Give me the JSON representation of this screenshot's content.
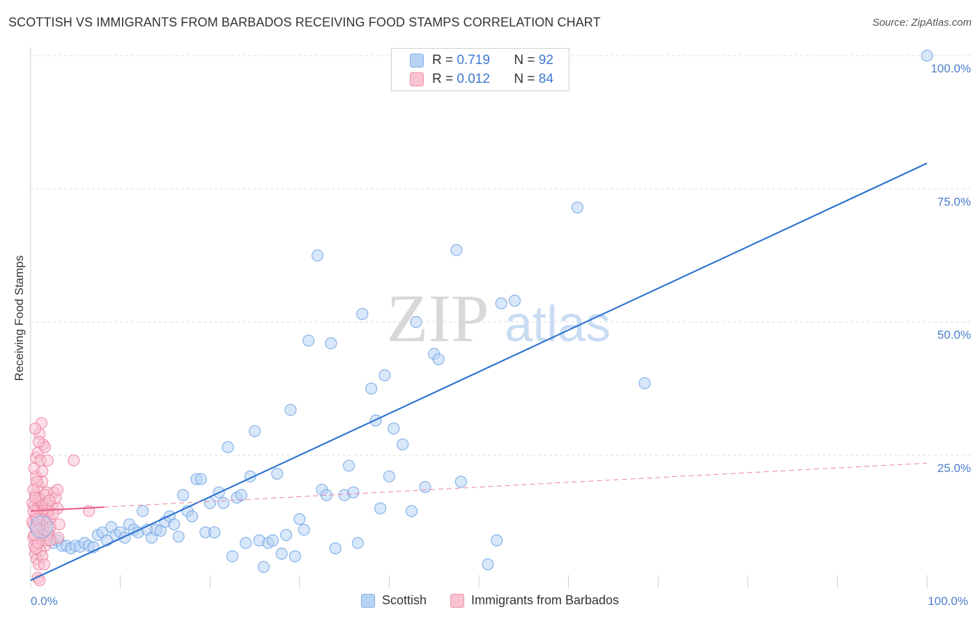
{
  "title": "SCOTTISH VS IMMIGRANTS FROM BARBADOS RECEIVING FOOD STAMPS CORRELATION CHART",
  "source": "Source: ZipAtlas.com",
  "watermark": {
    "zip": "ZIP",
    "atlas": "atlas"
  },
  "legend": {
    "r_label": "R =",
    "n_label": "N =",
    "rows": [
      {
        "name": "Scottish",
        "r": "0.719",
        "n": "92",
        "color": "#7fb0ea",
        "fill": "#b8d3f4"
      },
      {
        "name": "Immigrants from Barbados",
        "r": "0.012",
        "n": "84",
        "color": "#f08fab",
        "fill": "#f8c3d1"
      }
    ]
  },
  "bottom_legend": [
    "Scottish",
    "Immigrants from Barbados"
  ],
  "chart_data": {
    "type": "scatter",
    "title": "SCOTTISH VS IMMIGRANTS FROM BARBADOS RECEIVING FOOD STAMPS CORRELATION CHART",
    "xlabel": "",
    "ylabel": "Receiving Food Stamps",
    "xlim": [
      0,
      100
    ],
    "ylim": [
      0,
      100
    ],
    "x_tick_labels": [
      {
        "value": 0,
        "label": "0.0%"
      },
      {
        "value": 100,
        "label": "100.0%"
      }
    ],
    "y_tick_labels": [
      {
        "value": 25,
        "label": "25.0%"
      },
      {
        "value": 50,
        "label": "50.0%"
      },
      {
        "value": 75,
        "label": "75.0%"
      },
      {
        "value": 100,
        "label": "100.0%"
      }
    ],
    "grid": "horizontal dashed",
    "series": [
      {
        "name": "Scottish",
        "color": "#6fa3e3",
        "trend": {
          "x": [
            0,
            100
          ],
          "y": [
            1.5,
            79.8
          ]
        },
        "points": [
          [
            1.2,
            11.5
          ],
          [
            1.5,
            9.5
          ],
          [
            2.0,
            10.0
          ],
          [
            2.5,
            8.5
          ],
          [
            3.0,
            9.0
          ],
          [
            3.5,
            8.0
          ],
          [
            4.0,
            8.0
          ],
          [
            4.5,
            7.5
          ],
          [
            5.0,
            8.0
          ],
          [
            5.5,
            7.8
          ],
          [
            6.0,
            8.5
          ],
          [
            6.5,
            8.0
          ],
          [
            7.0,
            7.7
          ],
          [
            7.5,
            10.0
          ],
          [
            8.0,
            10.5
          ],
          [
            8.5,
            9.0
          ],
          [
            9.0,
            11.5
          ],
          [
            9.5,
            10.0
          ],
          [
            10.0,
            10.5
          ],
          [
            10.5,
            9.5
          ],
          [
            11.0,
            12.0
          ],
          [
            11.5,
            11.0
          ],
          [
            12.0,
            10.5
          ],
          [
            12.5,
            14.5
          ],
          [
            13.0,
            11.0
          ],
          [
            13.5,
            9.5
          ],
          [
            14.0,
            11.0
          ],
          [
            14.5,
            10.8
          ],
          [
            15.0,
            12.5
          ],
          [
            15.5,
            13.5
          ],
          [
            16.0,
            12.0
          ],
          [
            16.5,
            9.7
          ],
          [
            17.0,
            17.5
          ],
          [
            17.5,
            14.5
          ],
          [
            18.0,
            13.5
          ],
          [
            18.5,
            20.5
          ],
          [
            19.0,
            20.5
          ],
          [
            19.5,
            10.5
          ],
          [
            20.0,
            16.0
          ],
          [
            20.5,
            10.5
          ],
          [
            21.0,
            18.0
          ],
          [
            21.5,
            16.0
          ],
          [
            22.0,
            26.5
          ],
          [
            22.5,
            6.0
          ],
          [
            23.0,
            17.0
          ],
          [
            23.5,
            17.5
          ],
          [
            24.0,
            8.5
          ],
          [
            24.5,
            21.0
          ],
          [
            25.0,
            29.5
          ],
          [
            25.5,
            9.0
          ],
          [
            26.0,
            4.0
          ],
          [
            26.5,
            8.5
          ],
          [
            27.0,
            9.0
          ],
          [
            27.5,
            21.5
          ],
          [
            28.0,
            6.5
          ],
          [
            28.5,
            10.0
          ],
          [
            29.0,
            33.5
          ],
          [
            29.5,
            6.0
          ],
          [
            30.0,
            13.0
          ],
          [
            30.5,
            11.0
          ],
          [
            31.0,
            46.5
          ],
          [
            32.0,
            62.5
          ],
          [
            32.5,
            18.5
          ],
          [
            33.0,
            17.5
          ],
          [
            33.5,
            46.0
          ],
          [
            34.0,
            7.5
          ],
          [
            35.0,
            17.5
          ],
          [
            35.5,
            23.0
          ],
          [
            36.0,
            18.0
          ],
          [
            36.5,
            8.5
          ],
          [
            37.0,
            51.5
          ],
          [
            38.0,
            37.5
          ],
          [
            38.5,
            31.5
          ],
          [
            39.0,
            15.0
          ],
          [
            39.5,
            40.0
          ],
          [
            40.0,
            21.0
          ],
          [
            40.5,
            30.0
          ],
          [
            41.5,
            27.0
          ],
          [
            42.5,
            14.5
          ],
          [
            43.0,
            50.0
          ],
          [
            44.0,
            19.0
          ],
          [
            45.0,
            44.0
          ],
          [
            45.5,
            43.0
          ],
          [
            47.5,
            63.5
          ],
          [
            48.0,
            20.0
          ],
          [
            51.0,
            4.5
          ],
          [
            52.0,
            9.0
          ],
          [
            52.5,
            53.5
          ],
          [
            54.0,
            54.0
          ],
          [
            61.0,
            71.5
          ],
          [
            68.5,
            38.5
          ],
          [
            100.0,
            100.0
          ]
        ]
      },
      {
        "name": "Immigrants from Barbados",
        "color": "#ee7fa0",
        "trend": {
          "x": [
            0,
            100
          ],
          "y": [
            14.5,
            23.5
          ]
        },
        "trend_solid_until": 8.2,
        "points": [
          [
            0.3,
            12.0
          ],
          [
            0.4,
            15.5
          ],
          [
            0.5,
            17.5
          ],
          [
            0.6,
            10.5
          ],
          [
            0.7,
            14.0
          ],
          [
            0.8,
            19.0
          ],
          [
            0.9,
            12.5
          ],
          [
            1.0,
            16.5
          ],
          [
            1.1,
            9.0
          ],
          [
            1.2,
            13.0
          ],
          [
            1.3,
            20.0
          ],
          [
            1.4,
            11.5
          ],
          [
            1.5,
            15.0
          ],
          [
            1.6,
            8.0
          ],
          [
            1.7,
            13.5
          ],
          [
            1.8,
            18.0
          ],
          [
            1.9,
            10.0
          ],
          [
            2.0,
            14.5
          ],
          [
            0.2,
            16.0
          ],
          [
            0.3,
            9.5
          ],
          [
            0.5,
            13.5
          ],
          [
            0.6,
            21.0
          ],
          [
            0.7,
            11.0
          ],
          [
            0.8,
            15.0
          ],
          [
            0.9,
            17.0
          ],
          [
            1.0,
            12.0
          ],
          [
            1.1,
            14.0
          ],
          [
            1.2,
            10.0
          ],
          [
            1.3,
            16.0
          ],
          [
            1.4,
            13.0
          ],
          [
            1.5,
            11.0
          ],
          [
            1.6,
            15.5
          ],
          [
            1.7,
            9.0
          ],
          [
            1.8,
            12.5
          ],
          [
            1.9,
            14.5
          ],
          [
            2.0,
            10.5
          ],
          [
            0.4,
            22.5
          ],
          [
            0.6,
            24.5
          ],
          [
            0.8,
            25.5
          ],
          [
            1.0,
            29.0
          ],
          [
            1.2,
            31.0
          ],
          [
            1.4,
            27.0
          ],
          [
            1.6,
            26.5
          ],
          [
            0.5,
            30.0
          ],
          [
            0.9,
            27.5
          ],
          [
            1.1,
            24.0
          ],
          [
            1.3,
            22.0
          ],
          [
            0.7,
            20.0
          ],
          [
            0.3,
            18.5
          ],
          [
            0.5,
            6.5
          ],
          [
            0.7,
            5.5
          ],
          [
            0.9,
            4.5
          ],
          [
            1.1,
            7.0
          ],
          [
            1.3,
            6.0
          ],
          [
            1.5,
            4.5
          ],
          [
            0.8,
            2.0
          ],
          [
            1.0,
            1.5
          ],
          [
            0.4,
            8.0
          ],
          [
            0.6,
            7.5
          ],
          [
            0.8,
            8.5
          ],
          [
            1.2,
            16.5
          ],
          [
            1.6,
            17.5
          ],
          [
            1.8,
            16.0
          ],
          [
            2.1,
            13.0
          ],
          [
            2.2,
            11.5
          ],
          [
            2.4,
            15.5
          ],
          [
            2.6,
            18.0
          ],
          [
            2.8,
            17.0
          ],
          [
            3.0,
            15.0
          ],
          [
            3.2,
            12.0
          ],
          [
            3.0,
            18.5
          ],
          [
            3.1,
            9.5
          ],
          [
            2.2,
            9.0
          ],
          [
            2.5,
            14.0
          ],
          [
            0.2,
            12.5
          ],
          [
            0.3,
            14.5
          ],
          [
            0.4,
            10.0
          ],
          [
            0.5,
            17.0
          ],
          [
            0.6,
            11.5
          ],
          [
            0.7,
            13.0
          ],
          [
            1.9,
            24.0
          ],
          [
            2.1,
            16.5
          ],
          [
            6.5,
            14.5
          ],
          [
            4.8,
            24.0
          ]
        ]
      }
    ]
  }
}
